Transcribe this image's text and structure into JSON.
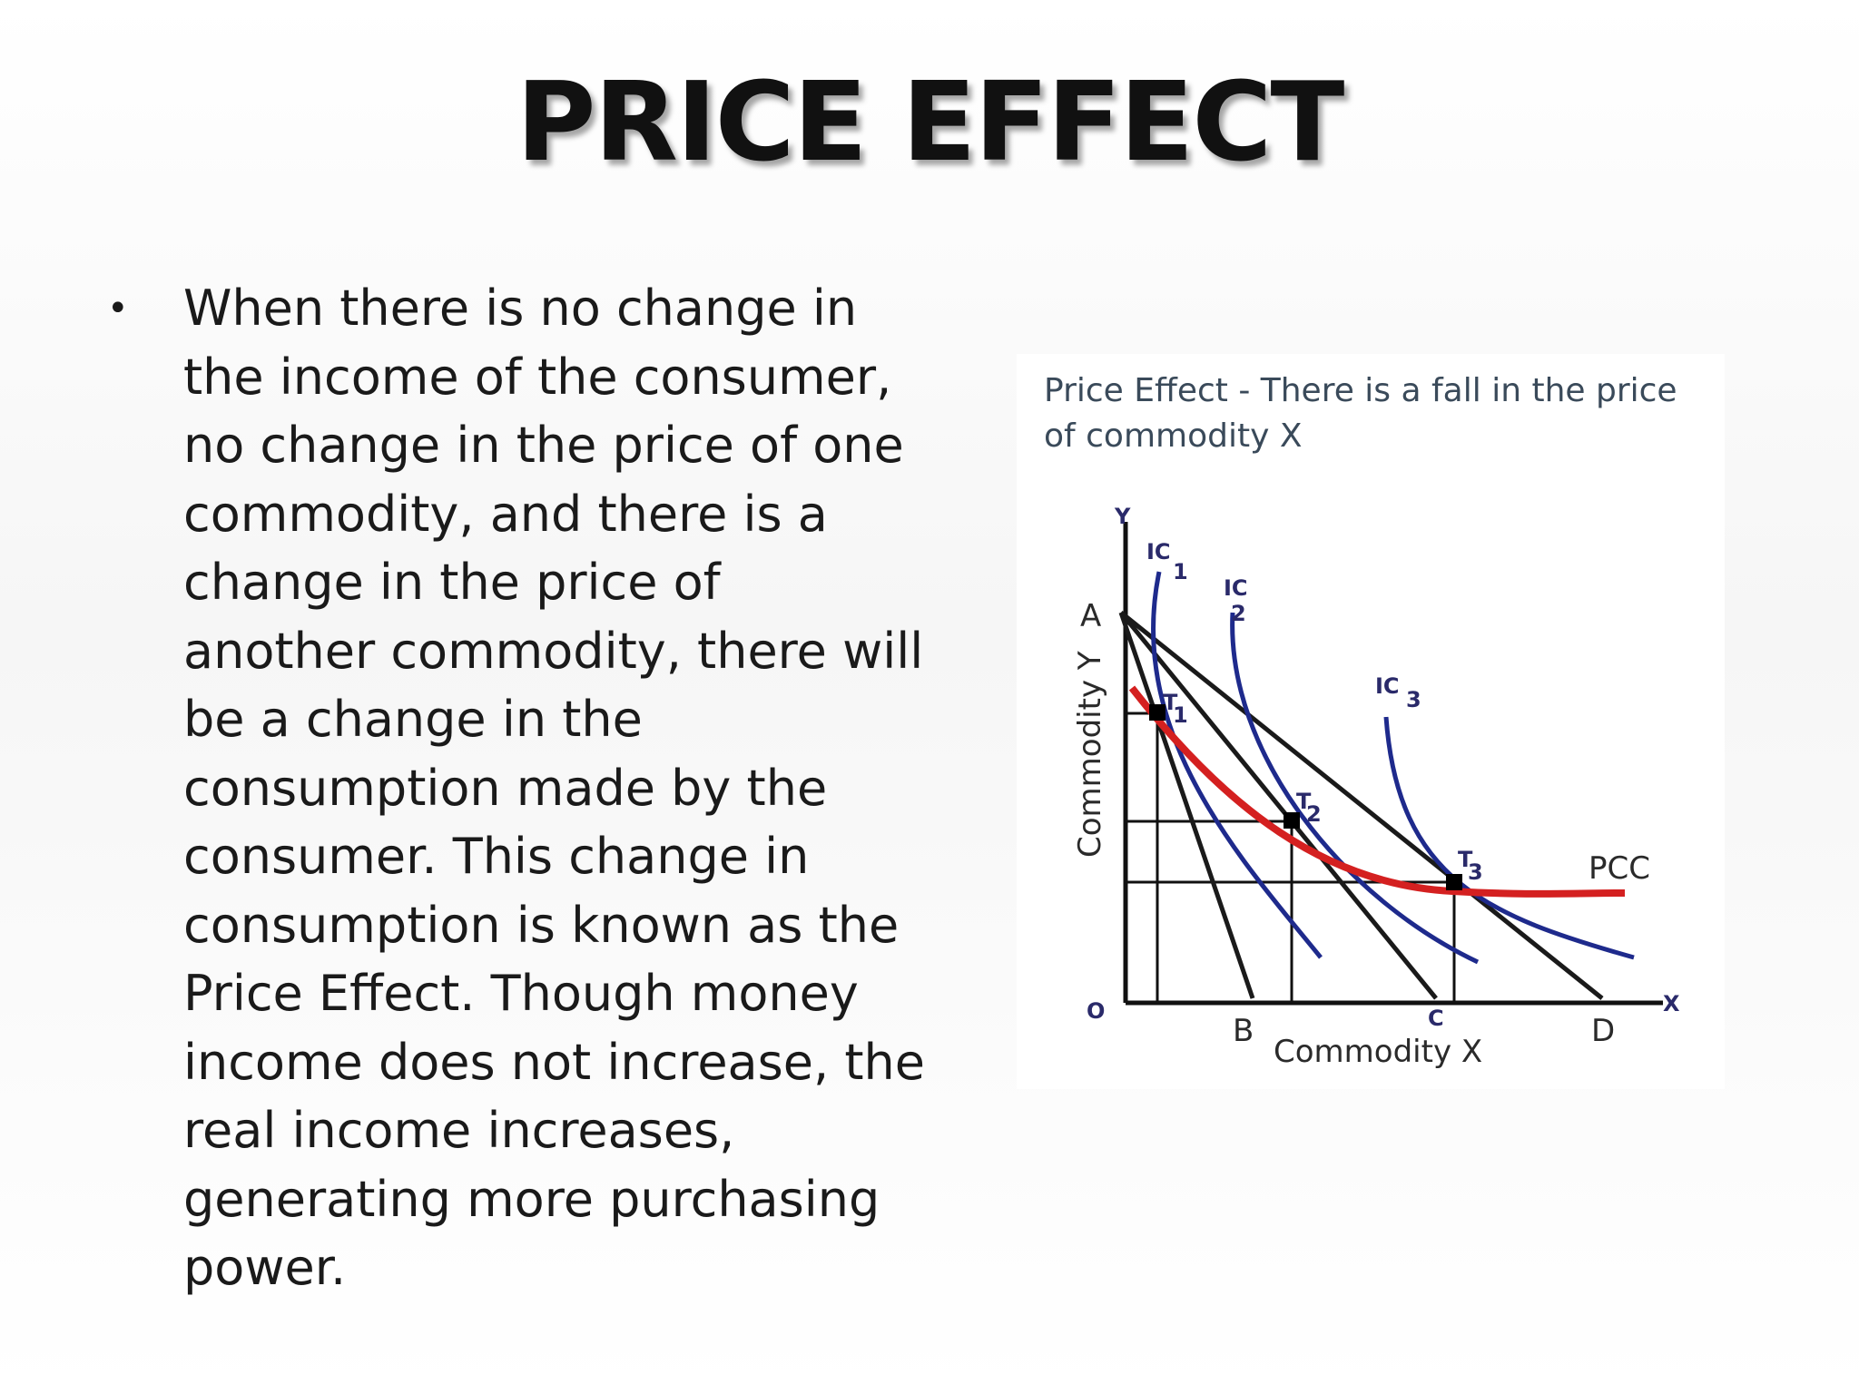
{
  "slide": {
    "title": "PRICE EFFECT",
    "bullet_text": "When there is no change in the income of the consumer, no change in the price of one commodity, and there is a change in the price of another commodity, there will be a change in the consumption made by the consumer. This change in consumption is known as the Price Effect. Though money income does not increase, the real income increases, generating more purchasing power."
  },
  "figure": {
    "caption_line1": "Price Effect - There is a fall in the price",
    "caption_line2": "of commodity X",
    "y_axis_letter": "Y",
    "x_axis_letter": "X",
    "origin_label": "O",
    "y_axis_title": "Commodity Y",
    "x_axis_title": "Commodity X",
    "point_a": "A",
    "point_b": "B",
    "point_c": "C",
    "point_d": "D",
    "ic1_main": "IC",
    "ic1_sub": "1",
    "ic2_main": "IC",
    "ic2_sub": "2",
    "ic3_main": "IC",
    "ic3_sub": "3",
    "t1_main": "T",
    "t1_sub": "1",
    "t2_main": "T",
    "t2_sub": "2",
    "t3_main": "T",
    "t3_sub": "3",
    "pcc_label": "PCC",
    "colors": {
      "budget_line": "#1a1a1a",
      "indifference_curve": "#1e2a8c",
      "pcc": "#d42020",
      "equilibrium_point": "#000000"
    }
  }
}
